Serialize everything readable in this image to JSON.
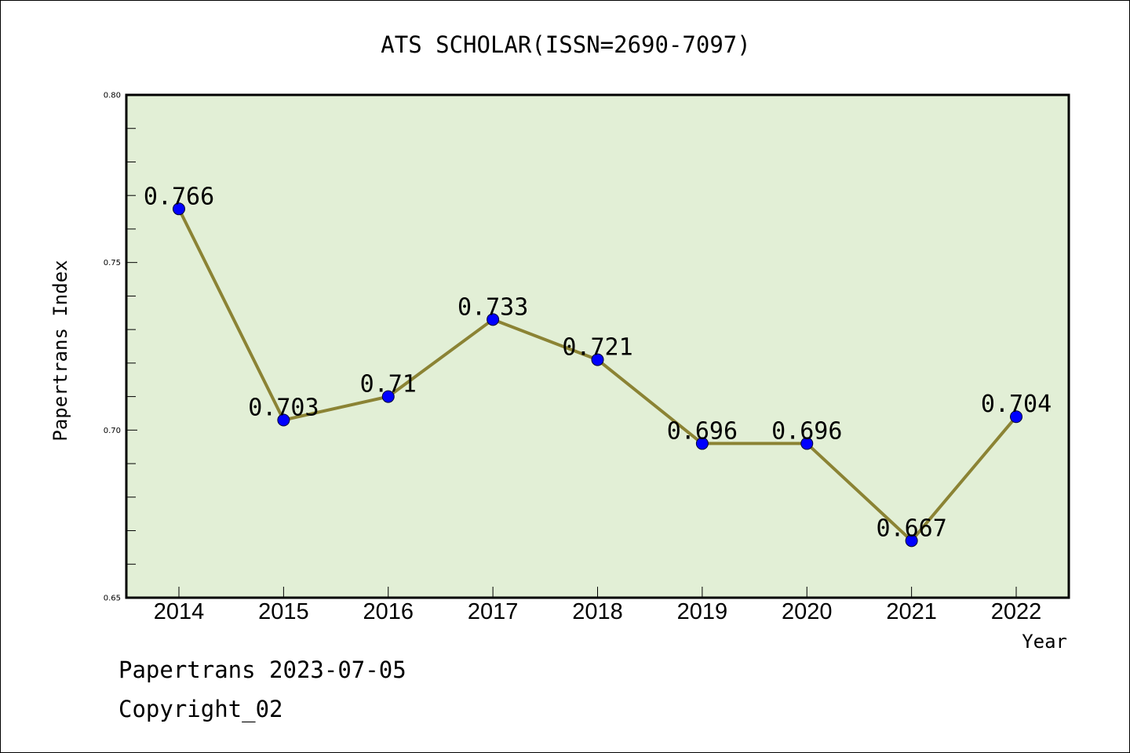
{
  "chart_data": {
    "type": "line",
    "title": "ATS SCHOLAR(ISSN=2690-7097)",
    "xlabel": "Year",
    "ylabel": "Papertrans Index",
    "categories": [
      "2014",
      "2015",
      "2016",
      "2017",
      "2018",
      "2019",
      "2020",
      "2021",
      "2022"
    ],
    "values": [
      0.766,
      0.703,
      0.71,
      0.733,
      0.721,
      0.696,
      0.696,
      0.667,
      0.704
    ],
    "data_labels": [
      "0.766",
      "0.703",
      "0.71",
      "0.733",
      "0.721",
      "0.696",
      "0.696",
      "0.667",
      "0.704"
    ],
    "ylim": [
      0.65,
      0.8
    ],
    "yticks": [
      0.65,
      0.7,
      0.75,
      0.8
    ],
    "ytick_labels": [
      "0.65",
      "0.70",
      "0.75",
      "0.80"
    ],
    "grid": false,
    "legend": "none",
    "colors": {
      "plot_background": "#e2efd6",
      "line": "#8b8334",
      "marker": "#0000ff",
      "axes": "#000000"
    }
  },
  "footer": {
    "line1": "Papertrans 2023-07-05",
    "line2": "Copyright_02"
  }
}
